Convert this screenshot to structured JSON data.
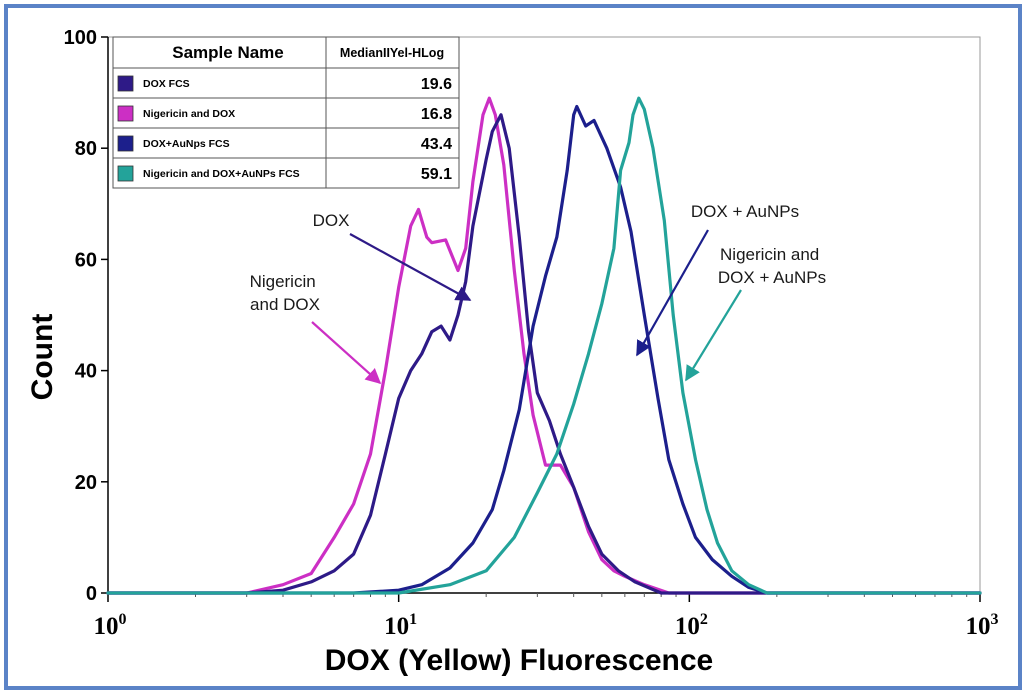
{
  "chart_data": {
    "type": "line",
    "xlabel": "DOX (Yellow) Fluorescence",
    "ylabel": "Count",
    "x_scale": "log",
    "xlim": [
      1,
      1000
    ],
    "ylim": [
      0,
      100
    ],
    "x_ticks": [
      {
        "base": "10",
        "exp": "0",
        "value": 1
      },
      {
        "base": "10",
        "exp": "1",
        "value": 10
      },
      {
        "base": "10",
        "exp": "2",
        "value": 100
      },
      {
        "base": "10",
        "exp": "3",
        "value": 1000
      }
    ],
    "y_ticks": [
      "0",
      "20",
      "40",
      "60",
      "80",
      "100"
    ],
    "grid": false,
    "legend": {
      "placement": "top-left",
      "header_name": "Sample Name",
      "header_value": "MedianIIYel-HLog",
      "entries": [
        {
          "name": "DOX FCS",
          "value": "19.6",
          "color": "#2e1a87"
        },
        {
          "name": "Nigericin and DOX",
          "value": "16.8",
          "color": "#cc2fc4"
        },
        {
          "name": "DOX+AuNps FCS",
          "value": "43.4",
          "color": "#1c1f8c"
        },
        {
          "name": "Nigericin and DOX+AuNPs FCS",
          "value": "59.1",
          "color": "#23a39a"
        }
      ]
    },
    "series": [
      {
        "name": "Nigericin and DOX",
        "color": "#cc2fc4",
        "points": [
          [
            3,
            0
          ],
          [
            4,
            1.5
          ],
          [
            5,
            3.5
          ],
          [
            6,
            10
          ],
          [
            7,
            16
          ],
          [
            8,
            25
          ],
          [
            9,
            40
          ],
          [
            10,
            55
          ],
          [
            11,
            66
          ],
          [
            11.7,
            69
          ],
          [
            12.5,
            64
          ],
          [
            13,
            63
          ],
          [
            14.5,
            63.5
          ],
          [
            16,
            58
          ],
          [
            17,
            62
          ],
          [
            18,
            74
          ],
          [
            19.5,
            86
          ],
          [
            20.5,
            89
          ],
          [
            21.5,
            86
          ],
          [
            23,
            77
          ],
          [
            25,
            58
          ],
          [
            27,
            43
          ],
          [
            29,
            32
          ],
          [
            32,
            23
          ],
          [
            36,
            23
          ],
          [
            40,
            19
          ],
          [
            45,
            11
          ],
          [
            50,
            6
          ],
          [
            55,
            4
          ],
          [
            60,
            3
          ],
          [
            70,
            1.5
          ],
          [
            85,
            0
          ]
        ]
      },
      {
        "name": "DOX FCS",
        "color": "#2e1a87",
        "points": [
          [
            3,
            0
          ],
          [
            4,
            0.5
          ],
          [
            5,
            2
          ],
          [
            6,
            4
          ],
          [
            7,
            7
          ],
          [
            8,
            14
          ],
          [
            9,
            25
          ],
          [
            10,
            35
          ],
          [
            11,
            40
          ],
          [
            12,
            43
          ],
          [
            13,
            47
          ],
          [
            14,
            48
          ],
          [
            15,
            45.5
          ],
          [
            16,
            50
          ],
          [
            17,
            56
          ],
          [
            18,
            66
          ],
          [
            20,
            78
          ],
          [
            21,
            83
          ],
          [
            22.5,
            86
          ],
          [
            24,
            80
          ],
          [
            26,
            64
          ],
          [
            28,
            47
          ],
          [
            30,
            36
          ],
          [
            33,
            31
          ],
          [
            36,
            25
          ],
          [
            40,
            19
          ],
          [
            45,
            12
          ],
          [
            50,
            7
          ],
          [
            57,
            4
          ],
          [
            65,
            2
          ],
          [
            80,
            0
          ]
        ]
      },
      {
        "name": "DOX+AuNPs FCS",
        "color": "#1c1f8c",
        "points": [
          [
            7,
            0
          ],
          [
            10,
            0.5
          ],
          [
            12,
            1.5
          ],
          [
            15,
            4.5
          ],
          [
            18,
            9
          ],
          [
            21,
            15
          ],
          [
            23,
            22
          ],
          [
            26,
            33
          ],
          [
            29,
            48
          ],
          [
            32,
            57
          ],
          [
            35,
            64
          ],
          [
            38,
            76
          ],
          [
            40,
            86
          ],
          [
            41,
            87.5
          ],
          [
            44,
            84
          ],
          [
            47,
            85
          ],
          [
            52,
            80
          ],
          [
            58,
            73
          ],
          [
            63,
            65
          ],
          [
            70,
            50
          ],
          [
            78,
            35
          ],
          [
            85,
            24
          ],
          [
            95,
            16
          ],
          [
            105,
            10
          ],
          [
            120,
            6
          ],
          [
            140,
            3
          ],
          [
            160,
            1
          ],
          [
            185,
            0
          ]
        ]
      },
      {
        "name": "Nigericin and DOX+AuNPs FCS",
        "color": "#23a39a",
        "points": [
          [
            10,
            0
          ],
          [
            15,
            1.5
          ],
          [
            20,
            4
          ],
          [
            25,
            10
          ],
          [
            30,
            18
          ],
          [
            35,
            25
          ],
          [
            40,
            34
          ],
          [
            45,
            43
          ],
          [
            50,
            52
          ],
          [
            55,
            62
          ],
          [
            58,
            76
          ],
          [
            62,
            81
          ],
          [
            64,
            86
          ],
          [
            67,
            89
          ],
          [
            70,
            87
          ],
          [
            75,
            80
          ],
          [
            82,
            67
          ],
          [
            88,
            50
          ],
          [
            95,
            36
          ],
          [
            105,
            24
          ],
          [
            115,
            15
          ],
          [
            125,
            9
          ],
          [
            140,
            4
          ],
          [
            160,
            1.5
          ],
          [
            185,
            0
          ]
        ]
      }
    ],
    "annotations": [
      {
        "lines": [
          "DOX"
        ],
        "color": "#2e1a87"
      },
      {
        "lines": [
          "Nigericin",
          "and DOX"
        ],
        "color": "#cc2fc4"
      },
      {
        "lines": [
          "DOX + AuNPs"
        ],
        "color": "#1c1f8c"
      },
      {
        "lines": [
          "Nigericin and",
          "DOX + AuNPs"
        ],
        "color": "#23a39a"
      }
    ]
  }
}
